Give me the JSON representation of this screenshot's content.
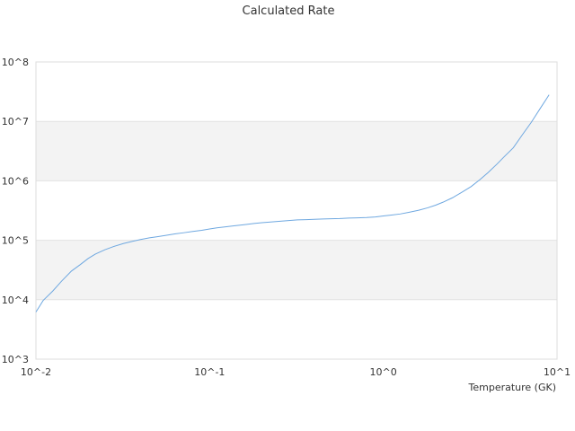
{
  "chart_data": {
    "type": "line",
    "title": "Calculated Rate",
    "xlabel": "Temperature (GK)",
    "ylabel": "",
    "x_scale": "log",
    "y_scale": "log",
    "xlim": [
      0.01,
      10
    ],
    "ylim": [
      1000,
      100000000
    ],
    "x_ticks": [
      "10^-2",
      "10^-1",
      "10^0",
      "10^1"
    ],
    "y_ticks": [
      "10^3",
      "10^4",
      "10^5",
      "10^6",
      "10^7",
      "10^8"
    ],
    "alternating_bands": true,
    "line_color": "#6fa8e0",
    "band_color": "#f3f3f3",
    "series": [
      {
        "x": [
          0.01,
          0.011,
          0.0125,
          0.014,
          0.016,
          0.018,
          0.02,
          0.022,
          0.025,
          0.028,
          0.032,
          0.036,
          0.04,
          0.045,
          0.05,
          0.056,
          0.063,
          0.071,
          0.08,
          0.09,
          0.1,
          0.11,
          0.125,
          0.14,
          0.16,
          0.18,
          0.2,
          0.22,
          0.25,
          0.28,
          0.32,
          0.36,
          0.4,
          0.45,
          0.5,
          0.56,
          0.63,
          0.71,
          0.8,
          0.9,
          1.0,
          1.1,
          1.25,
          1.4,
          1.6,
          1.8,
          2.0,
          2.2,
          2.5,
          2.8,
          3.2,
          3.6,
          4.0,
          4.5,
          5.0,
          5.6,
          6.3,
          7.1,
          8.0,
          9.0
        ],
        "values": [
          6200,
          9700,
          14000,
          20300,
          30300,
          39000,
          49500,
          58600,
          69500,
          78500,
          88500,
          96000,
          103000,
          110000,
          115000,
          121000,
          128000,
          134000,
          141000,
          147000,
          155000,
          162000,
          169000,
          176000,
          184000,
          192000,
          198000,
          202000,
          208000,
          214000,
          220000,
          222000,
          225000,
          228000,
          230000,
          232000,
          236000,
          238000,
          241000,
          247000,
          257000,
          265000,
          277000,
          295000,
          320000,
          352000,
          390000,
          436000,
          519000,
          630000,
          800000,
          1050000,
          1370000,
          1900000,
          2600000,
          3600000,
          5900000,
          9600000,
          16500000,
          28000000
        ]
      }
    ]
  }
}
